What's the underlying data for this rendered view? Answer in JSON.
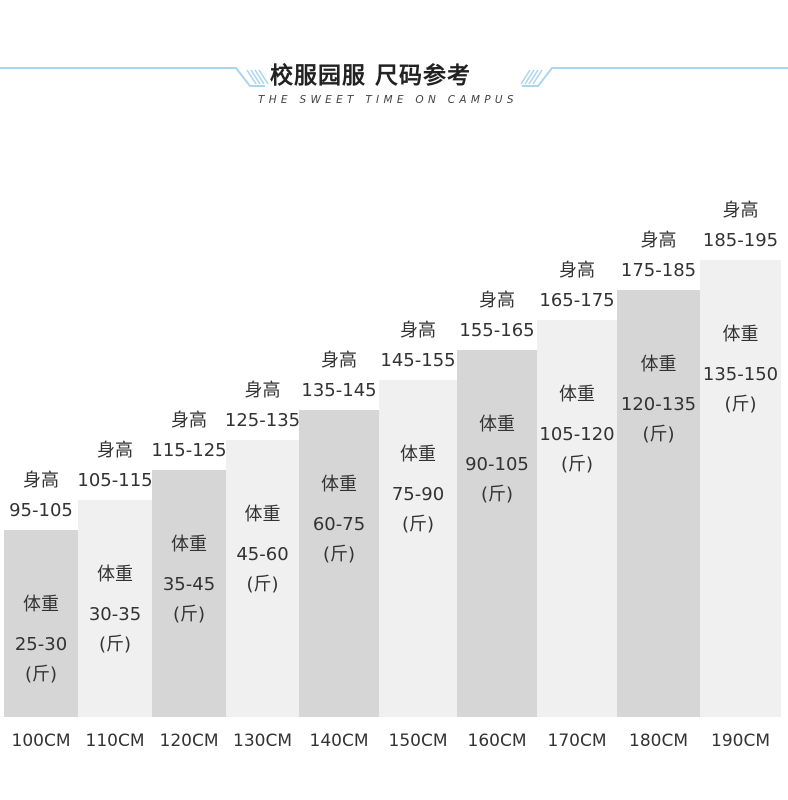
{
  "header": {
    "title_cn": "校服园服 尺码参考",
    "title_en": "THE SWEET TIME ON CAMPUS",
    "line_color": "#a9d5ee"
  },
  "chart_data": {
    "type": "bar",
    "categories": [
      "100CM",
      "110CM",
      "120CM",
      "130CM",
      "140CM",
      "150CM",
      "160CM",
      "170CM",
      "180CM",
      "190CM"
    ],
    "series": [
      {
        "name": "身高",
        "values": [
          "95-105",
          "105-115",
          "115-125",
          "125-135",
          "135-145",
          "145-155",
          "155-165",
          "165-175",
          "175-185",
          "185-195"
        ]
      },
      {
        "name": "体重",
        "values": [
          "25-30",
          "30-35",
          "35-45",
          "45-60",
          "60-75",
          "75-90",
          "90-105",
          "105-120",
          "120-135",
          "135-150"
        ]
      }
    ],
    "height_label": "身高",
    "weight_label": "体重",
    "weight_unit": "(斤)",
    "heights_steps": [
      1,
      2,
      3,
      4,
      5,
      6,
      7,
      8,
      9,
      10
    ],
    "colors": {
      "dark": "#d6d6d6",
      "light": "#f0f0f0"
    }
  }
}
